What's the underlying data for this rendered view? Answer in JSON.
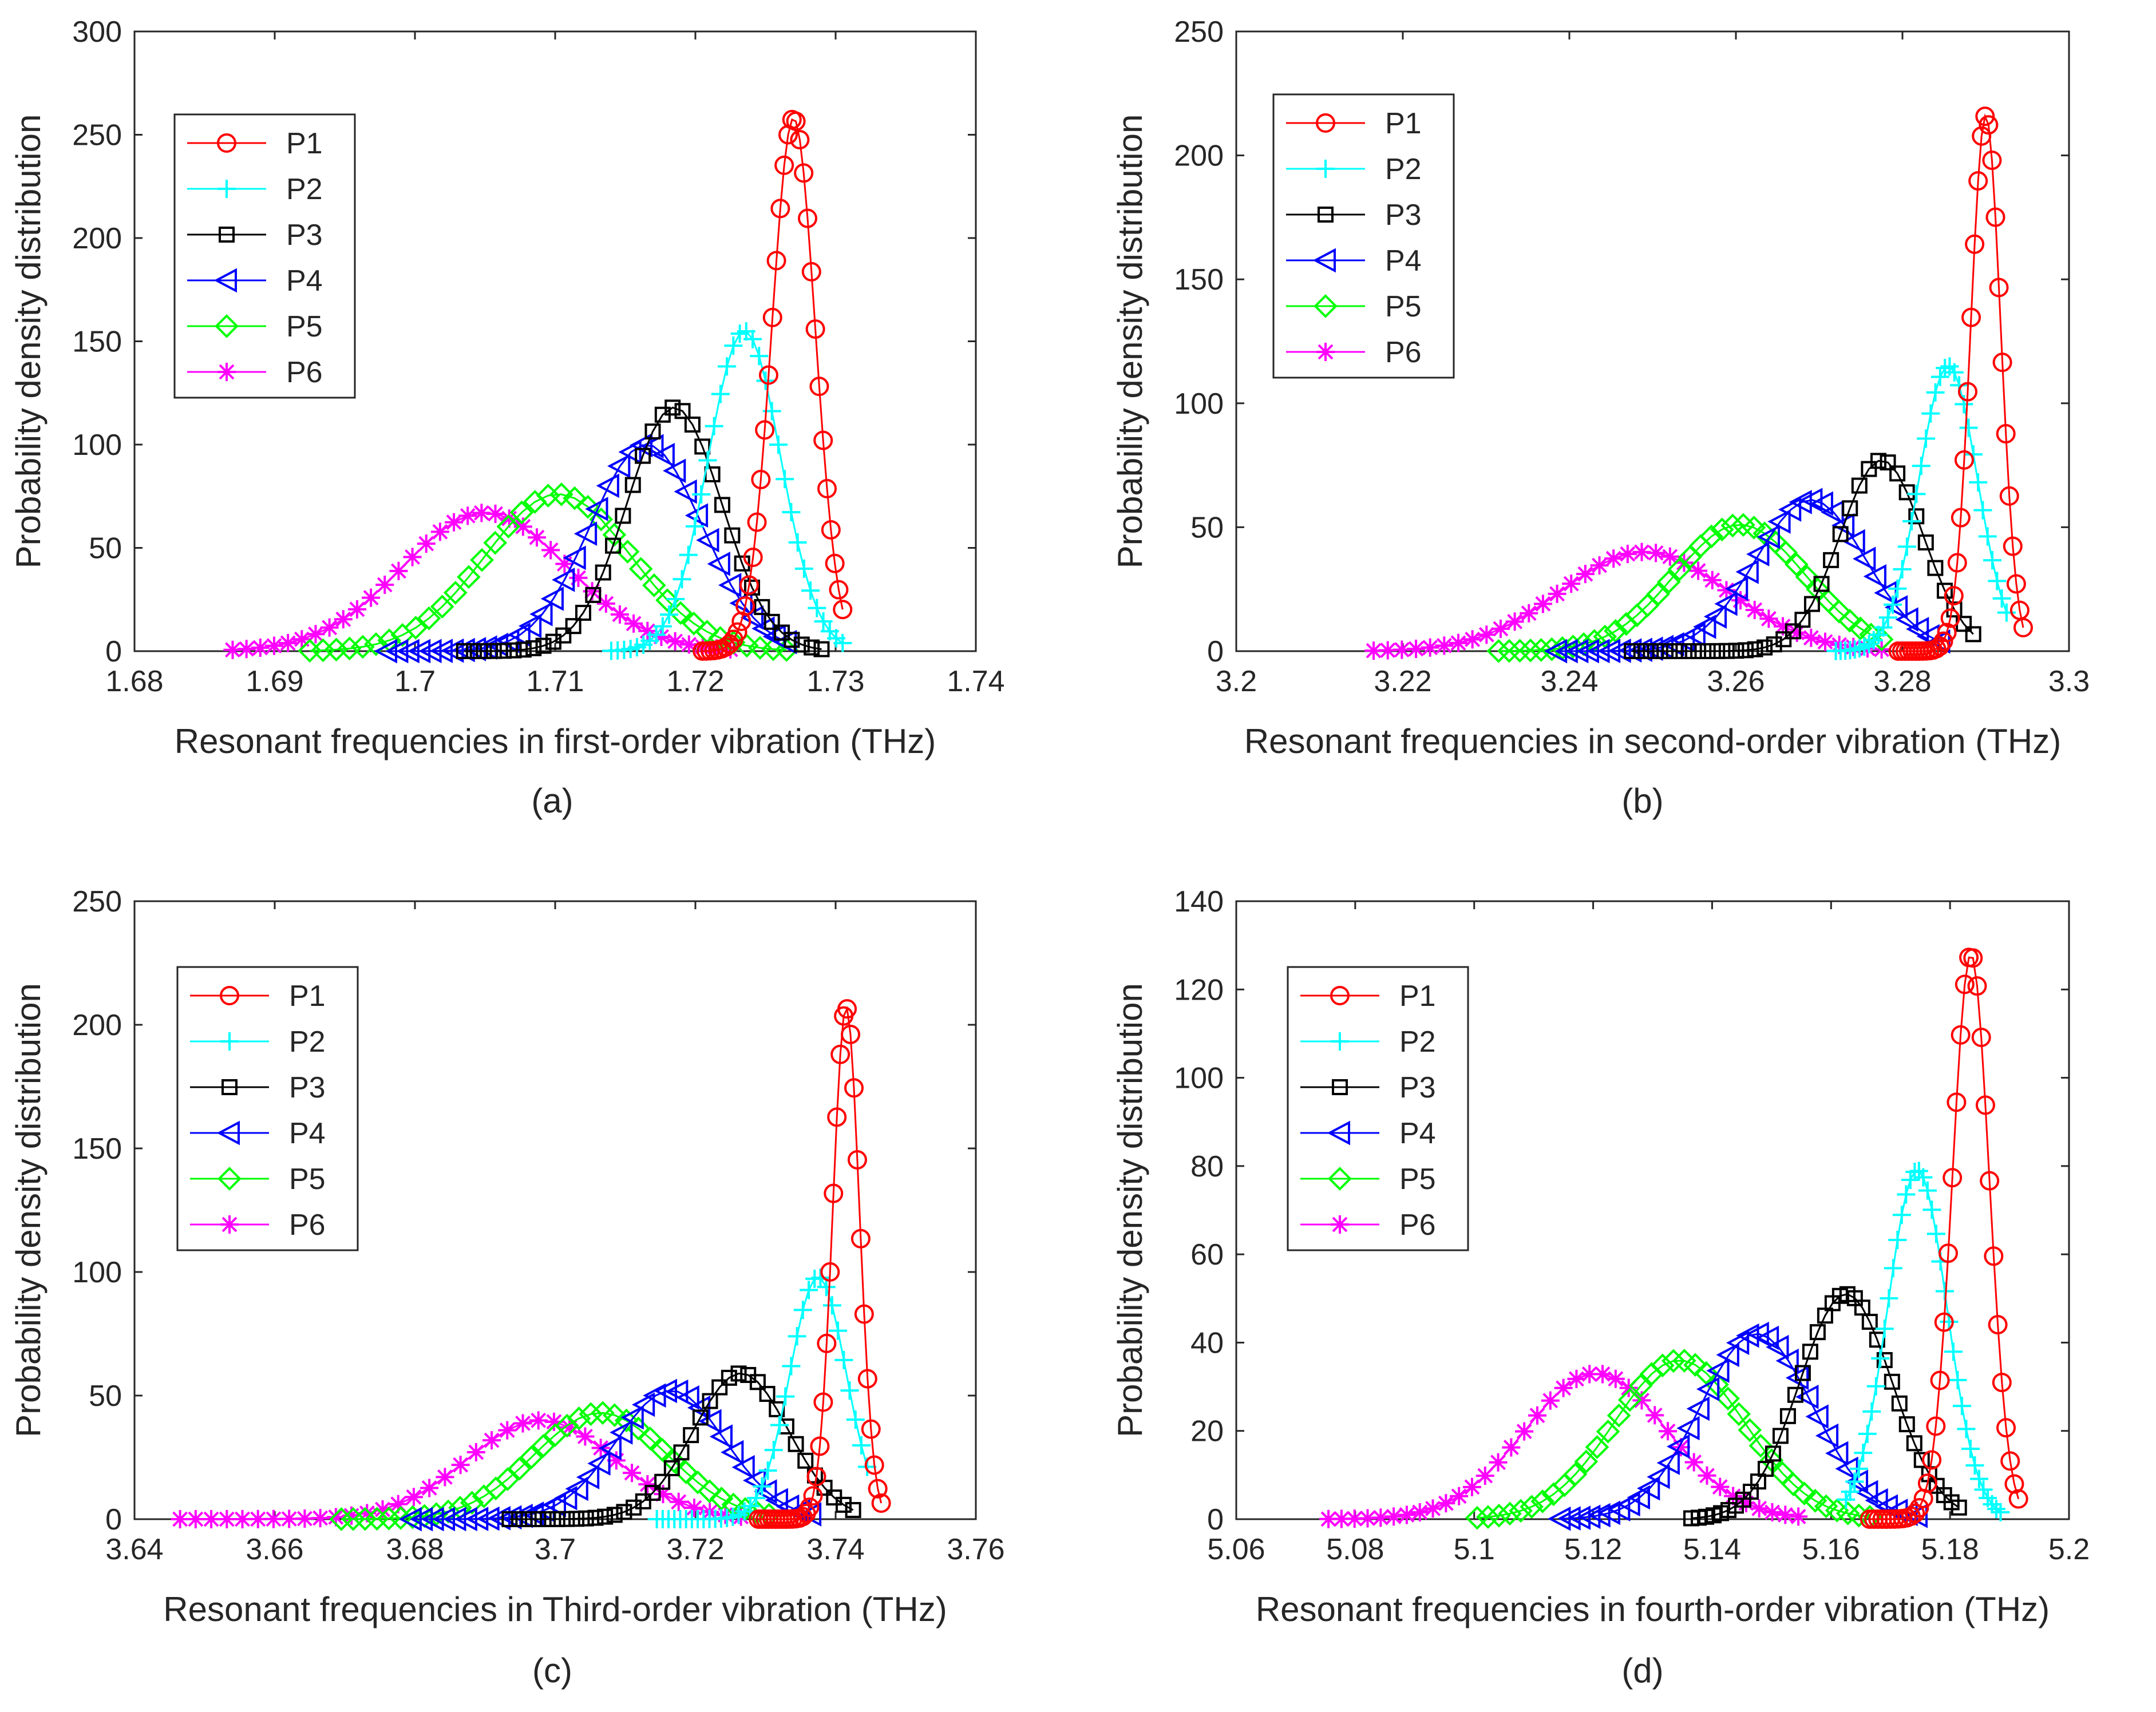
{
  "figure": {
    "panels": [
      "(a)",
      "(b)",
      "(c)",
      "(d)"
    ]
  },
  "series_style": [
    {
      "name": "P1",
      "color": "#ff0000",
      "marker": "circle"
    },
    {
      "name": "P2",
      "color": "#00ffff",
      "marker": "plus"
    },
    {
      "name": "P3",
      "color": "#000000",
      "marker": "square"
    },
    {
      "name": "P4",
      "color": "#0000ff",
      "marker": "triangle-left"
    },
    {
      "name": "P5",
      "color": "#00ff00",
      "marker": "diamond"
    },
    {
      "name": "P6",
      "color": "#ff00ff",
      "marker": "asterisk"
    }
  ],
  "chart_data": [
    {
      "type": "line",
      "caption": "(a)",
      "xlabel": "Resonant frequencies in first-order vibration (THz)",
      "ylabel": "Probability density distribution",
      "xlim": [
        1.68,
        1.74
      ],
      "ylim": [
        0,
        300
      ],
      "xticks": [
        "1.68",
        "1.69",
        "1.7",
        "1.71",
        "1.72",
        "1.73",
        "1.74"
      ],
      "yticks": [
        "0",
        "50",
        "100",
        "150",
        "200",
        "250",
        "300"
      ],
      "grid": false,
      "legend": "top-left",
      "series": [
        {
          "name": "P1",
          "peak_x": 1.727,
          "peak_y": 258,
          "sigma": 0.00155,
          "range": [
            1.7205,
            1.7305
          ]
        },
        {
          "name": "P2",
          "peak_x": 1.7235,
          "peak_y": 155,
          "sigma": 0.00258,
          "range": [
            1.714,
            1.7305
          ]
        },
        {
          "name": "P3",
          "peak_x": 1.7185,
          "peak_y": 118,
          "sigma": 0.00338,
          "range": [
            1.7035,
            1.729
          ]
        },
        {
          "name": "P4",
          "peak_x": 1.7165,
          "peak_y": 100,
          "sigma": 0.004,
          "range": [
            1.698,
            1.7265
          ]
        },
        {
          "name": "P5",
          "peak_x": 1.7102,
          "peak_y": 76,
          "sigma": 0.0052,
          "range": [
            1.6925,
            1.7265
          ]
        },
        {
          "name": "P6",
          "peak_x": 1.705,
          "peak_y": 67,
          "sigma": 0.0059,
          "range": [
            1.687,
            1.7225
          ]
        }
      ]
    },
    {
      "type": "line",
      "caption": "(b)",
      "xlabel": "Resonant frequencies in second-order vibration (THz)",
      "ylabel": "Probability density distribution",
      "xlim": [
        3.2,
        3.3
      ],
      "ylim": [
        0,
        250
      ],
      "xticks": [
        "3.2",
        "3.22",
        "3.24",
        "3.26",
        "3.28",
        "3.3"
      ],
      "yticks": [
        "0",
        "50",
        "100",
        "150",
        "200",
        "250"
      ],
      "grid": false,
      "legend": "top-left",
      "series": [
        {
          "name": "P1",
          "peak_x": 3.29,
          "peak_y": 216,
          "sigma": 0.0018,
          "range": [
            3.2795,
            3.2945
          ]
        },
        {
          "name": "P2",
          "peak_x": 3.2855,
          "peak_y": 115,
          "sigma": 0.0035,
          "range": [
            3.272,
            3.2925
          ]
        },
        {
          "name": "P3",
          "peak_x": 3.2775,
          "peak_y": 77,
          "sigma": 0.005,
          "range": [
            3.2475,
            3.2885
          ]
        },
        {
          "name": "P4",
          "peak_x": 3.269,
          "peak_y": 61,
          "sigma": 0.0066,
          "range": [
            3.2385,
            3.2845
          ]
        },
        {
          "name": "P5",
          "peak_x": 3.2605,
          "peak_y": 51,
          "sigma": 0.0078,
          "range": [
            3.2315,
            3.2775
          ]
        },
        {
          "name": "P6",
          "peak_x": 3.249,
          "peak_y": 40,
          "sigma": 0.01,
          "range": [
            3.2165,
            3.2775
          ]
        }
      ]
    },
    {
      "type": "line",
      "caption": "(c)",
      "xlabel": "Resonant frequencies in Third-order vibration (THz)",
      "ylabel": "Probability density distribution",
      "xlim": [
        3.64,
        3.76
      ],
      "ylim": [
        0,
        250
      ],
      "xticks": [
        "3.64",
        "3.66",
        "3.68",
        "3.7",
        "3.72",
        "3.74",
        "3.76"
      ],
      "yticks": [
        "0",
        "50",
        "100",
        "150",
        "200",
        "250"
      ],
      "grid": false,
      "legend": "top-left",
      "series": [
        {
          "name": "P1",
          "peak_x": 3.7415,
          "peak_y": 207,
          "sigma": 0.0019,
          "range": [
            3.729,
            3.7465
          ]
        },
        {
          "name": "P2",
          "peak_x": 3.7375,
          "peak_y": 98,
          "sigma": 0.004,
          "range": [
            3.7145,
            3.7445
          ]
        },
        {
          "name": "P3",
          "peak_x": 3.7265,
          "peak_y": 59,
          "sigma": 0.0068,
          "range": [
            3.6935,
            3.7425
          ]
        },
        {
          "name": "P4",
          "peak_x": 3.7165,
          "peak_y": 52,
          "sigma": 0.0078,
          "range": [
            3.6795,
            3.7365
          ]
        },
        {
          "name": "P5",
          "peak_x": 3.7065,
          "peak_y": 43,
          "sigma": 0.0095,
          "range": [
            3.6695,
            3.7305
          ]
        },
        {
          "name": "P6",
          "peak_x": 3.698,
          "peak_y": 40,
          "sigma": 0.0105,
          "range": [
            3.6465,
            3.7265
          ]
        }
      ]
    },
    {
      "type": "line",
      "caption": "(d)",
      "xlabel": "Resonant frequencies in fourth-order vibration (THz)",
      "ylabel": "Probability density distribution",
      "xlim": [
        5.06,
        5.2
      ],
      "ylim": [
        0,
        140
      ],
      "xticks": [
        "5.06",
        "5.08",
        "5.1",
        "5.12",
        "5.14",
        "5.16",
        "5.18",
        "5.2"
      ],
      "yticks": [
        "0",
        "20",
        "40",
        "60",
        "80",
        "100",
        "120",
        "140"
      ],
      "grid": false,
      "legend": "top-left",
      "series": [
        {
          "name": "P1",
          "peak_x": 5.1835,
          "peak_y": 128,
          "sigma": 0.0031,
          "range": [
            5.1665,
            5.1915
          ]
        },
        {
          "name": "P2",
          "peak_x": 5.1745,
          "peak_y": 79,
          "sigma": 0.005,
          "range": [
            5.1625,
            5.1885
          ]
        },
        {
          "name": "P3",
          "peak_x": 5.1625,
          "peak_y": 51,
          "sigma": 0.0078,
          "range": [
            5.1365,
            5.1815
          ]
        },
        {
          "name": "P4",
          "peak_x": 5.1475,
          "peak_y": 42,
          "sigma": 0.0095,
          "range": [
            5.1145,
            5.1745
          ]
        },
        {
          "name": "P5",
          "peak_x": 5.1345,
          "peak_y": 36,
          "sigma": 0.011,
          "range": [
            5.1005,
            5.1665
          ]
        },
        {
          "name": "P6",
          "peak_x": 5.1205,
          "peak_y": 33,
          "sigma": 0.012,
          "range": [
            5.0755,
            5.1545
          ]
        }
      ]
    }
  ]
}
